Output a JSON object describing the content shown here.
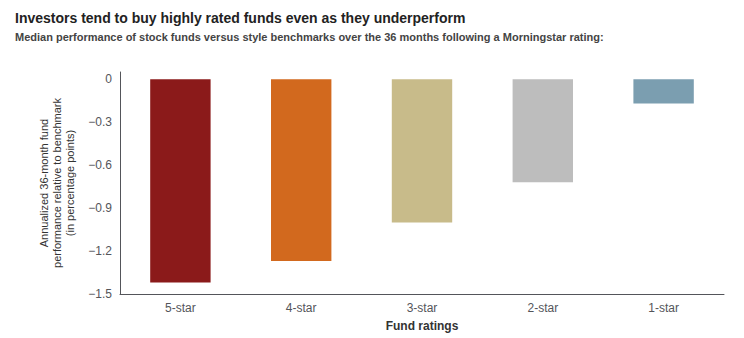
{
  "chart_data": {
    "type": "bar",
    "title": "Investors tend to buy highly rated funds even as they underperform",
    "subtitle": "Median performance of stock funds versus style benchmarks over the 36 months following a Morningstar rating:",
    "categories": [
      "5-star",
      "4-star",
      "3-star",
      "2-star",
      "1-star"
    ],
    "values": [
      -1.42,
      -1.27,
      -1.0,
      -0.72,
      -0.17
    ],
    "colors": [
      "#8B1A1A",
      "#D2691E",
      "#C8BB8A",
      "#BDBDBD",
      "#7B9EB0"
    ],
    "xlabel": "Fund ratings",
    "ylabel": "Annualized 36-month fund\nperformance relative to benchmark\n(in percentage points)",
    "ylim": [
      -1.5,
      0.05
    ],
    "yticks": [
      0,
      {
        "value": -0.3,
        "label": "−0.3"
      },
      {
        "value": -0.6,
        "label": "−0.6"
      },
      {
        "value": -0.9,
        "label": "−0.9"
      },
      {
        "value": -1.2,
        "label": "−1.2"
      },
      {
        "value": -1.5,
        "label": "−1.5"
      }
    ],
    "grid": false
  }
}
